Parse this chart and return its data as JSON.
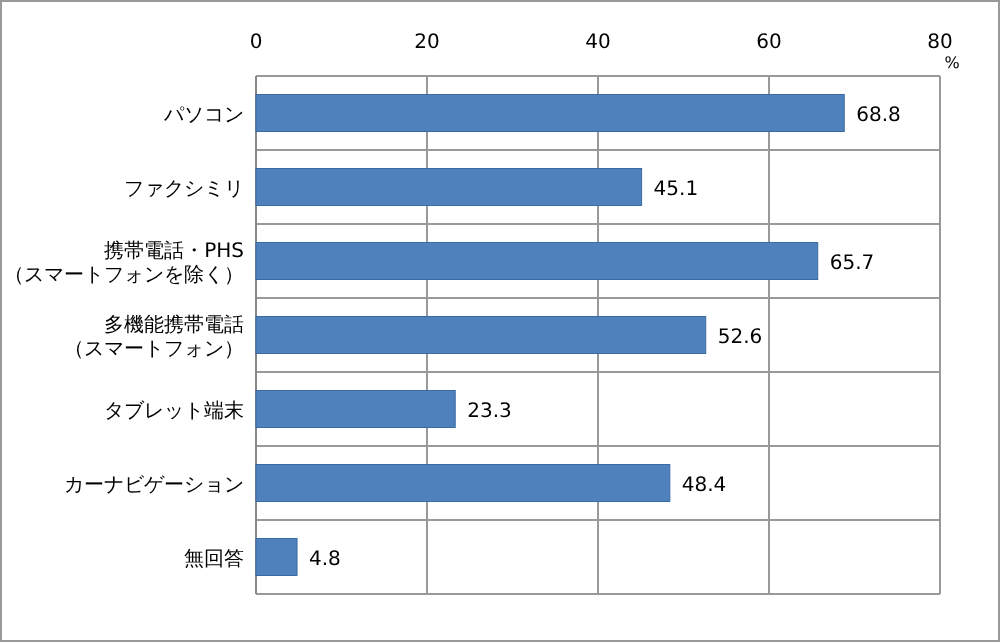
{
  "chart_data": {
    "type": "bar",
    "orientation": "horizontal",
    "xlabel": "%",
    "categories": [
      "パソコン",
      "ファクシミリ",
      "携帯電話・PHS（スマートフォンを除く）",
      "多機能携帯電話（スマートフォン）",
      "タブレット端末",
      "カーナビゲーション",
      "無回答"
    ],
    "values": [
      68.8,
      45.1,
      65.7,
      52.6,
      23.3,
      48.4,
      4.8
    ],
    "color": "#4f81bd",
    "xlim": [
      0,
      80
    ],
    "xticks": [
      0,
      20,
      40,
      60,
      80
    ],
    "grid": true,
    "data_labels": true
  }
}
